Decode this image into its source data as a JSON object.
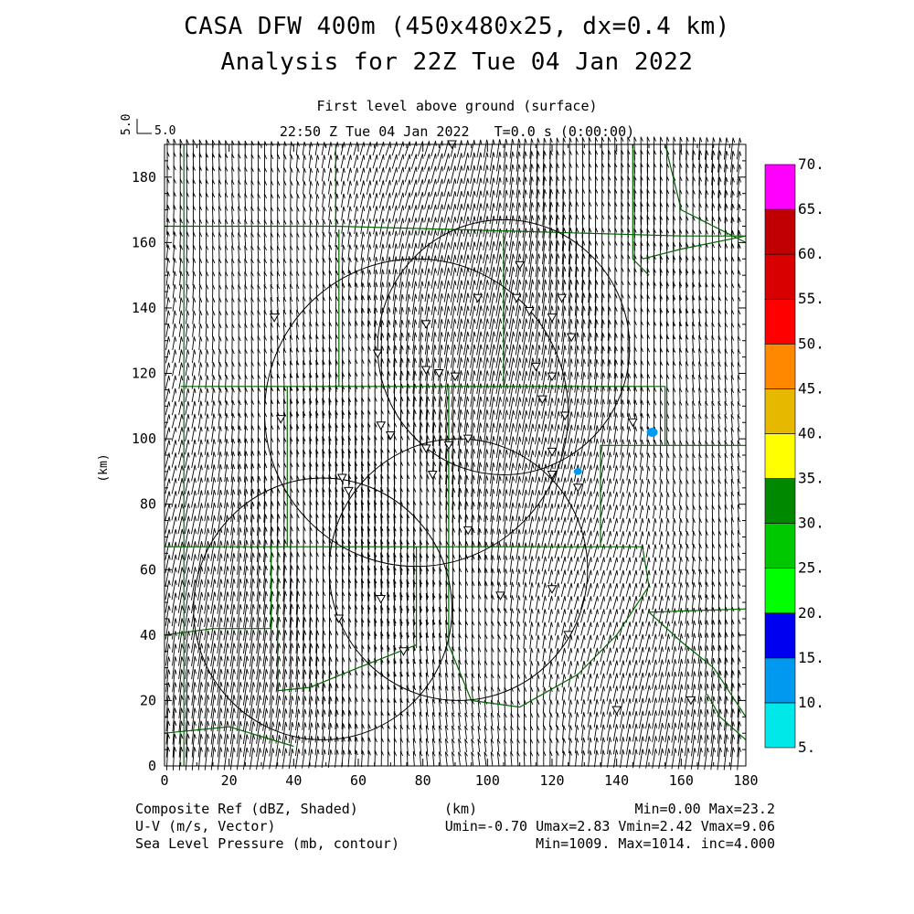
{
  "header": {
    "title_line1": "CASA DFW 400m (450x480x25, dx=0.4 km)",
    "title_line2": "Analysis for 22Z Tue 04 Jan 2022",
    "subtitle_line1": "First level above ground (surface)",
    "subtitle_line2": "22:50 Z Tue 04 Jan 2022   T=0.0 s (0:00:00)"
  },
  "vector_key": {
    "rotated_label": "5.0",
    "label": "5.0"
  },
  "axes": {
    "x_label": "(km)",
    "y_label": "(km)",
    "x_ticks": [
      "0",
      "20",
      "40",
      "60",
      "80",
      "100",
      "120",
      "140",
      "160",
      "180"
    ],
    "y_ticks": [
      "0",
      "20",
      "40",
      "60",
      "80",
      "100",
      "120",
      "140",
      "160",
      "180"
    ],
    "xlim": [
      0,
      180
    ],
    "ylim": [
      0,
      190
    ]
  },
  "colorbar": {
    "levels": [
      "5.",
      "10.",
      "15.",
      "20.",
      "25.",
      "30.",
      "35.",
      "40.",
      "45.",
      "50.",
      "55.",
      "60.",
      "65.",
      "70."
    ],
    "colors": [
      "#00e8e8",
      "#0099f0",
      "#0000f0",
      "#00ff00",
      "#00c800",
      "#008800",
      "#ffff00",
      "#e6b800",
      "#ff8800",
      "#ff0000",
      "#d80000",
      "#c00000",
      "#ff00ff"
    ]
  },
  "footer": {
    "left_line1": "Composite Ref (dBZ, Shaded)",
    "left_line2": "U-V (m/s, Vector)",
    "left_line3": "Sea Level Pressure (mb, contour)",
    "center_line1": "(km)",
    "right_line1": "Min=0.00 Max=23.2",
    "right_line2": "Umin=-0.70 Umax=2.83 Vmin=2.42 Vmax=9.06",
    "right_line3": "Min=1009. Max=1014. inc=4.000"
  },
  "map_data": {
    "field_colors": {
      "county_lines": "#006400",
      "vectors": "#000000",
      "radar_rings": "#000000",
      "echo": "#0099f0"
    },
    "radar_rings": [
      {
        "x": 78,
        "y": 108,
        "r": 47
      },
      {
        "x": 105,
        "y": 128,
        "r": 39
      },
      {
        "x": 49,
        "y": 48,
        "r": 40
      },
      {
        "x": 91,
        "y": 60,
        "r": 40
      }
    ],
    "station_markers": [
      [
        34,
        137
      ],
      [
        36,
        106
      ],
      [
        66,
        126
      ],
      [
        67,
        104
      ],
      [
        70,
        101
      ],
      [
        81,
        135
      ],
      [
        81,
        121
      ],
      [
        85,
        120
      ],
      [
        90,
        119
      ],
      [
        89,
        190
      ],
      [
        97,
        143
      ],
      [
        110,
        153
      ],
      [
        109,
        143
      ],
      [
        113,
        139
      ],
      [
        115,
        122
      ],
      [
        117,
        112
      ],
      [
        120,
        119
      ],
      [
        120,
        96
      ],
      [
        120,
        89
      ],
      [
        123,
        143
      ],
      [
        120,
        137
      ],
      [
        126,
        131
      ],
      [
        124,
        107
      ],
      [
        81,
        97
      ],
      [
        83,
        89
      ],
      [
        88,
        98
      ],
      [
        94,
        100
      ],
      [
        128,
        85
      ],
      [
        145,
        105
      ],
      [
        55,
        88
      ],
      [
        57,
        84
      ],
      [
        67,
        51
      ],
      [
        54,
        45
      ],
      [
        74,
        35
      ],
      [
        94,
        72
      ],
      [
        104,
        52
      ],
      [
        120,
        54
      ],
      [
        125,
        40
      ],
      [
        140,
        17
      ],
      [
        163,
        20
      ]
    ],
    "echoes": [
      {
        "x": 151,
        "y": 102,
        "size": 2
      },
      {
        "x": 128,
        "y": 90,
        "size": 1.5
      }
    ],
    "county_lines": [
      [
        [
          6,
          0
        ],
        [
          6,
          190
        ]
      ],
      [
        [
          0,
          165
        ],
        [
          53,
          165
        ],
        [
          53,
          190
        ]
      ],
      [
        [
          53,
          165
        ],
        [
          90,
          164
        ],
        [
          160,
          162
        ],
        [
          180,
          162
        ]
      ],
      [
        [
          5,
          116
        ],
        [
          155,
          116
        ],
        [
          155,
          98
        ],
        [
          180,
          98
        ]
      ],
      [
        [
          38,
          116
        ],
        [
          38,
          67
        ],
        [
          0,
          67
        ]
      ],
      [
        [
          38,
          67
        ],
        [
          135,
          67
        ],
        [
          135,
          98
        ],
        [
          155,
          98
        ]
      ],
      [
        [
          54,
          164
        ],
        [
          54,
          116
        ]
      ],
      [
        [
          105,
          162
        ],
        [
          105,
          116
        ]
      ],
      [
        [
          88,
          116
        ],
        [
          88,
          67
        ]
      ],
      [
        [
          78,
          67
        ],
        [
          78,
          36
        ]
      ],
      [
        [
          15,
          42
        ],
        [
          33,
          42
        ],
        [
          33,
          67
        ]
      ],
      [
        [
          0,
          40
        ],
        [
          15,
          42
        ]
      ],
      [
        [
          35,
          67
        ],
        [
          35,
          23
        ],
        [
          45,
          24
        ],
        [
          60,
          30
        ],
        [
          78,
          37
        ]
      ],
      [
        [
          0,
          10
        ],
        [
          20,
          12
        ],
        [
          40,
          6
        ]
      ],
      [
        [
          88,
          67
        ],
        [
          88,
          37
        ],
        [
          95,
          20
        ],
        [
          110,
          18
        ],
        [
          128,
          28
        ],
        [
          140,
          40
        ],
        [
          150,
          55
        ],
        [
          148,
          67
        ],
        [
          135,
          67
        ]
      ],
      [
        [
          150,
          47
        ],
        [
          180,
          48
        ]
      ],
      [
        [
          150,
          47
        ],
        [
          160,
          38
        ],
        [
          170,
          30
        ],
        [
          180,
          15
        ]
      ],
      [
        [
          148,
          155
        ],
        [
          160,
          158
        ],
        [
          180,
          162
        ]
      ],
      [
        [
          145,
          190
        ],
        [
          145,
          155
        ],
        [
          150,
          150
        ]
      ],
      [
        [
          155,
          190
        ],
        [
          160,
          170
        ],
        [
          180,
          160
        ]
      ],
      [
        [
          180,
          8
        ],
        [
          172,
          15
        ],
        [
          168,
          22
        ]
      ]
    ]
  }
}
